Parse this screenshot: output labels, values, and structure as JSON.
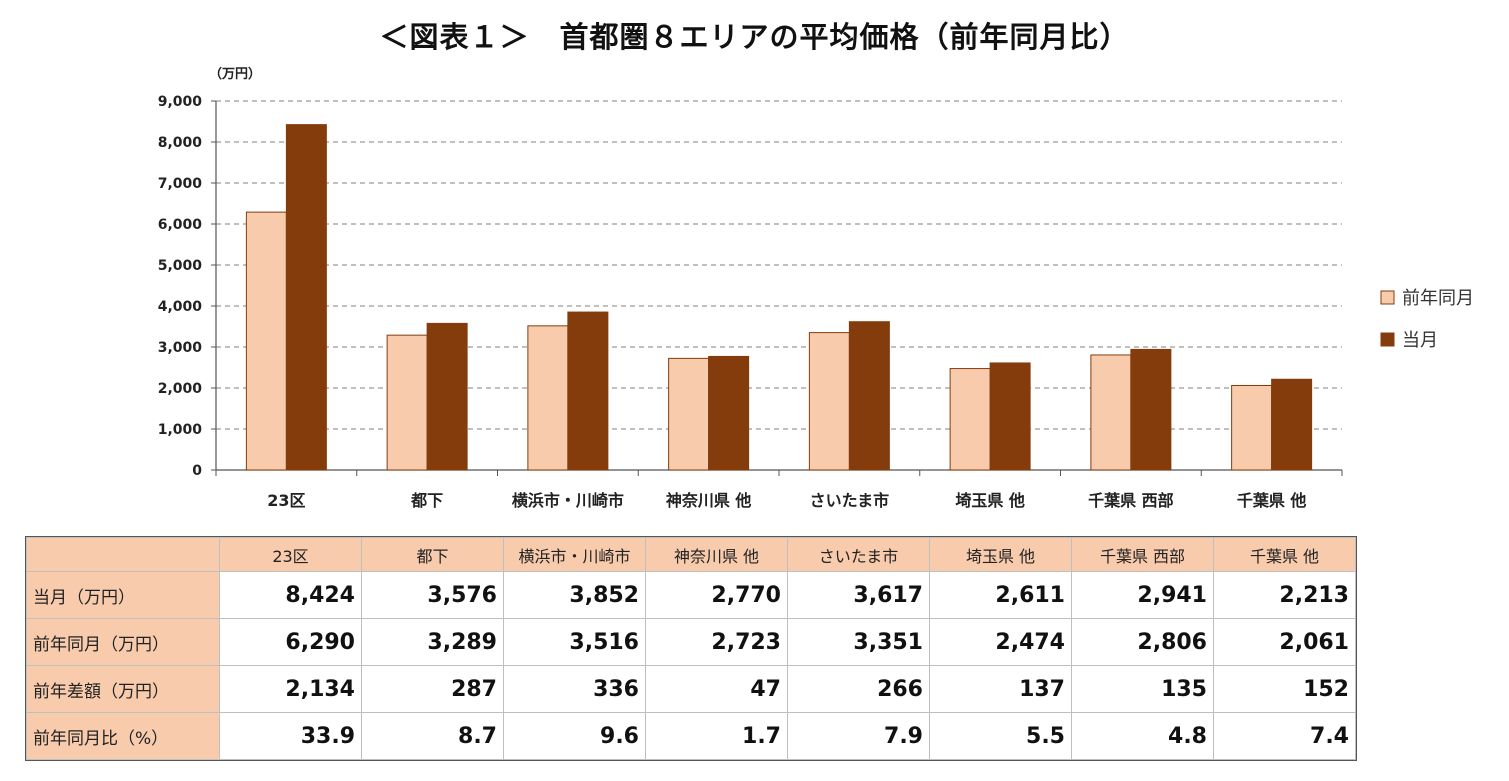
{
  "title": "＜図表１＞　首都圏８エリアの平均価格（前年同月比）",
  "chart_data": {
    "type": "bar",
    "unit_label": "（万円）",
    "categories": [
      "23区",
      "都下",
      "横浜市・川崎市",
      "神奈川県 他",
      "さいたま市",
      "埼玉県 他",
      "千葉県 西部",
      "千葉県 他"
    ],
    "series": [
      {
        "name": "前年同月",
        "color": "#f8cbad",
        "values": [
          6290,
          3289,
          3516,
          2723,
          3351,
          2474,
          2806,
          2061
        ]
      },
      {
        "name": "当月",
        "color": "#843c0c",
        "values": [
          8424,
          3576,
          3852,
          2770,
          3617,
          2611,
          2941,
          2213
        ]
      }
    ],
    "ylim": [
      0,
      9000
    ],
    "yticks": [
      "0",
      "1,000",
      "2,000",
      "3,000",
      "4,000",
      "5,000",
      "6,000",
      "7,000",
      "8,000",
      "9,000"
    ],
    "grid": true,
    "legend_position": "right"
  },
  "table": {
    "header": [
      "",
      "23区",
      "都下",
      "横浜市・川崎市",
      "神奈川県 他",
      "さいたま市",
      "埼玉県 他",
      "千葉県 西部",
      "千葉県 他"
    ],
    "rows": [
      {
        "label": "当月（万円）",
        "values": [
          "8,424",
          "3,576",
          "3,852",
          "2,770",
          "3,617",
          "2,611",
          "2,941",
          "2,213"
        ]
      },
      {
        "label": "前年同月（万円）",
        "values": [
          "6,290",
          "3,289",
          "3,516",
          "2,723",
          "3,351",
          "2,474",
          "2,806",
          "2,061"
        ]
      },
      {
        "label": "前年差額（万円）",
        "values": [
          "2,134",
          "287",
          "336",
          "47",
          "266",
          "137",
          "135",
          "152"
        ]
      },
      {
        "label": "前年同月比（%）",
        "values": [
          "33.9",
          "8.7",
          "9.6",
          "1.7",
          "7.9",
          "5.5",
          "4.8",
          "7.4"
        ]
      }
    ]
  }
}
